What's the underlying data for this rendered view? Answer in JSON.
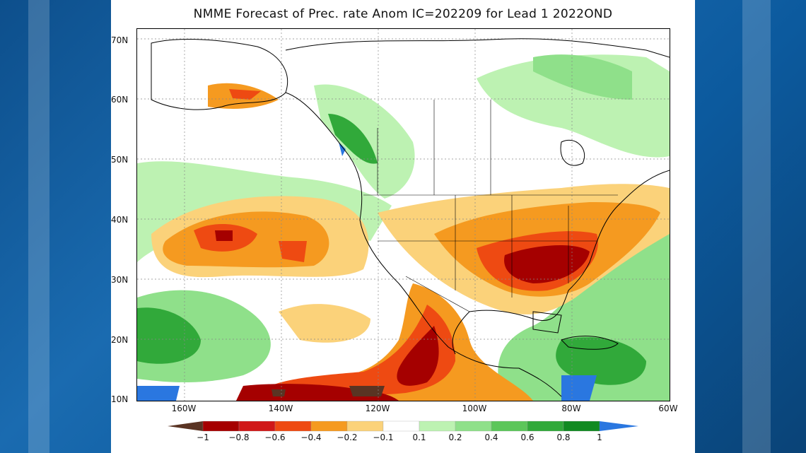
{
  "title": "NMME Forecast of Prec. rate Anom IC=202209 for Lead 1 2022OND",
  "latitude_labels": [
    "70N",
    "60N",
    "50N",
    "40N",
    "30N",
    "20N",
    "10N"
  ],
  "longitude_labels": [
    "160W",
    "140W",
    "120W",
    "100W",
    "80W",
    "60W"
  ],
  "colorbar": {
    "labels": [
      "−1",
      "−0.8",
      "−0.6",
      "−0.4",
      "−0.2",
      "−0.1",
      "0.1",
      "0.2",
      "0.4",
      "0.6",
      "0.8",
      "1"
    ],
    "colors": [
      "#5a3423",
      "#a50000",
      "#d01818",
      "#ee4a12",
      "#f59a20",
      "#fbd27a",
      "#ffffff",
      "#bdf2b2",
      "#8fe08a",
      "#5cc65a",
      "#31a93a",
      "#118a21",
      "#2a77e0"
    ]
  },
  "colors": {
    "land_outline": "#000000",
    "wet_light": "#bdf2b2",
    "wet_mid": "#8fe08a",
    "wet_strong": "#31a93a",
    "dry_light": "#fbd27a",
    "dry_mid": "#f59a20",
    "dry_strong": "#ee4a12",
    "dry_extreme": "#a50000"
  }
}
